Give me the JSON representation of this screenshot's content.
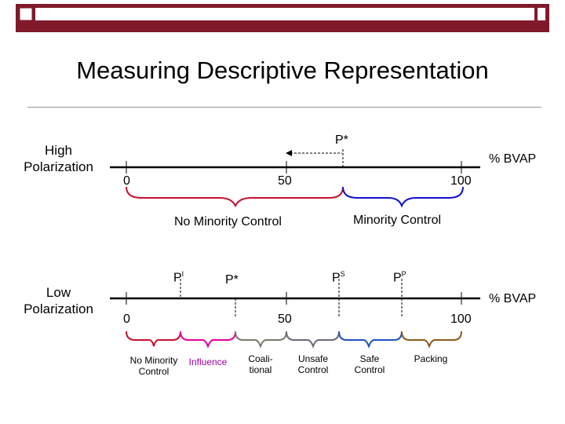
{
  "title": "Measuring Descriptive Representation",
  "high": {
    "label_line1": "High",
    "label_line2": "Polarization",
    "p_star": "P*",
    "tick_0": "0",
    "tick_50": "50",
    "tick_100": "100",
    "axis_unit": "% BVAP",
    "no_minority_control": "No Minority Control",
    "minority_control": "Minority Control"
  },
  "low": {
    "label_line1": "Low",
    "label_line2": "Polarization",
    "p_i_base": "P",
    "p_i_sup": "I",
    "p_star": "P*",
    "p_s_base": "P",
    "p_s_sup": "S",
    "p_p_base": "P",
    "p_p_sup": "P",
    "tick_0": "0",
    "tick_50": "50",
    "tick_100": "100",
    "axis_unit": "% BVAP",
    "regions": {
      "no_minority_line1": "No Minority",
      "no_minority_line2": "Control",
      "influence": "Influence",
      "coalitional_line1": "Coali-",
      "coalitional_line2": "tional",
      "unsafe_line1": "Unsafe",
      "unsafe_line2": "Control",
      "safe_line1": "Safe",
      "safe_line2": "Control",
      "packing": "Packing"
    }
  },
  "colors": {
    "topbar_dark": "#7f1a2b",
    "topbar_light": "#ffffff",
    "brace_red": "#c8102e",
    "brace_blue": "#1010d0",
    "brace_magenta": "#e000a0",
    "brace_purple": "#a000a0",
    "brace_olive": "#7a7a6a",
    "brace_gray": "#6a6a7a",
    "brace_blue2": "#2050c0",
    "brace_brown": "#8b5a1a"
  }
}
